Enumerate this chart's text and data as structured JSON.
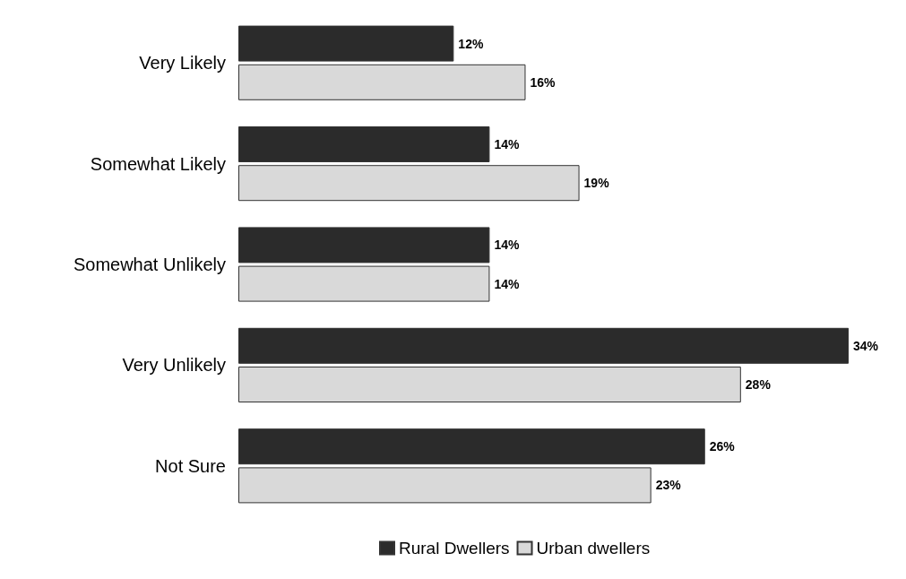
{
  "chart_data": {
    "type": "bar",
    "orientation": "horizontal",
    "categories": [
      "Very Likely",
      "Somewhat Likely",
      "Somewhat Unlikely",
      "Very Unlikely",
      "Not Sure"
    ],
    "series": [
      {
        "name": "Rural Dwellers",
        "color": "#2b2b2b",
        "values": [
          12,
          14,
          14,
          34,
          26
        ],
        "value_labels": [
          "12%",
          "14%",
          "14%",
          "34%",
          "26%"
        ]
      },
      {
        "name": "Urban dwellers",
        "color": "#d9d9d9",
        "values": [
          16,
          19,
          14,
          28,
          23
        ],
        "value_labels": [
          "16%",
          "19%",
          "14%",
          "28%",
          "23%"
        ]
      }
    ],
    "legend": "bottom",
    "tick_labels": "y"
  }
}
